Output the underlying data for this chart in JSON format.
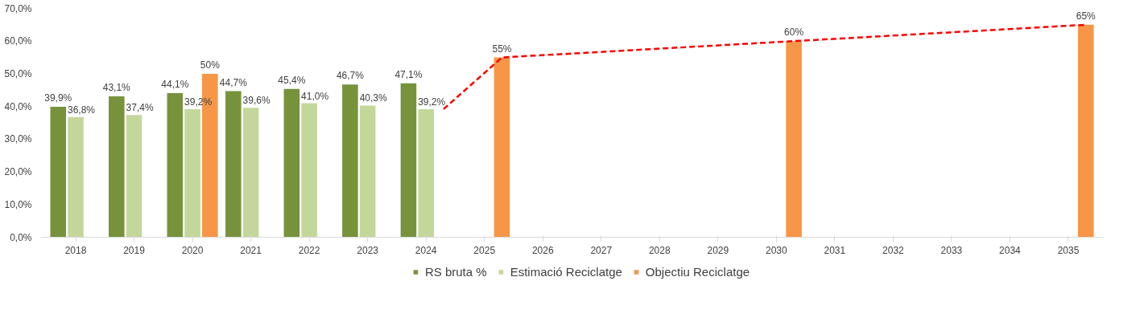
{
  "chart_data": {
    "type": "bar",
    "categories": [
      "2018",
      "2019",
      "2020",
      "2021",
      "2022",
      "2023",
      "2024",
      "2025",
      "2026",
      "2027",
      "2028",
      "2029",
      "2030",
      "2031",
      "2032",
      "2033",
      "2034",
      "2035"
    ],
    "series": [
      {
        "name": "RS bruta %",
        "color": "#76933c",
        "values": [
          39.9,
          43.1,
          44.1,
          44.7,
          45.4,
          46.7,
          47.1,
          null,
          null,
          null,
          null,
          null,
          null,
          null,
          null,
          null,
          null,
          null
        ],
        "value_labels": [
          "39,9%",
          "43,1%",
          "44,1%",
          "44,7%",
          "45,4%",
          "46,7%",
          "47,1%",
          null,
          null,
          null,
          null,
          null,
          null,
          null,
          null,
          null,
          null,
          null
        ]
      },
      {
        "name": "Estimació Reciclatge",
        "color": "#c4d79b",
        "values": [
          36.8,
          37.4,
          39.2,
          39.6,
          41.0,
          40.3,
          39.2,
          null,
          null,
          null,
          null,
          null,
          null,
          null,
          null,
          null,
          null,
          null
        ],
        "value_labels": [
          "36,8%",
          "37,4%",
          "39,2%",
          "39,6%",
          "41,0%",
          "40,3%",
          "39,2%",
          null,
          null,
          null,
          null,
          null,
          null,
          null,
          null,
          null,
          null,
          null
        ]
      },
      {
        "name": "Objectiu Reciclatge",
        "color": "#f79646",
        "values": [
          null,
          null,
          50,
          null,
          null,
          null,
          null,
          55,
          null,
          null,
          null,
          null,
          60,
          null,
          null,
          null,
          null,
          65
        ],
        "value_labels": [
          null,
          null,
          "50%",
          null,
          null,
          null,
          null,
          "55%",
          null,
          null,
          null,
          null,
          "60%",
          null,
          null,
          null,
          null,
          "65%"
        ]
      },
      {
        "type": "line",
        "color": "#ff0000",
        "line_style": "dashed",
        "values": [
          null,
          null,
          null,
          null,
          null,
          null,
          39.2,
          55,
          56,
          57,
          58,
          59,
          60,
          61,
          62,
          63,
          64,
          65
        ]
      }
    ],
    "ylim": [
      0,
      70
    ],
    "yticks": [
      {
        "value": 0,
        "label": "0,0%"
      },
      {
        "value": 10,
        "label": "10,0%"
      },
      {
        "value": 20,
        "label": "20,0%"
      },
      {
        "value": 30,
        "label": "30,0%"
      },
      {
        "value": 40,
        "label": "40,0%"
      },
      {
        "value": 50,
        "label": "50,0%"
      },
      {
        "value": 60,
        "label": "60,0%"
      },
      {
        "value": 70,
        "label": "70,0%"
      }
    ],
    "grid": false,
    "legend": "bottom"
  }
}
